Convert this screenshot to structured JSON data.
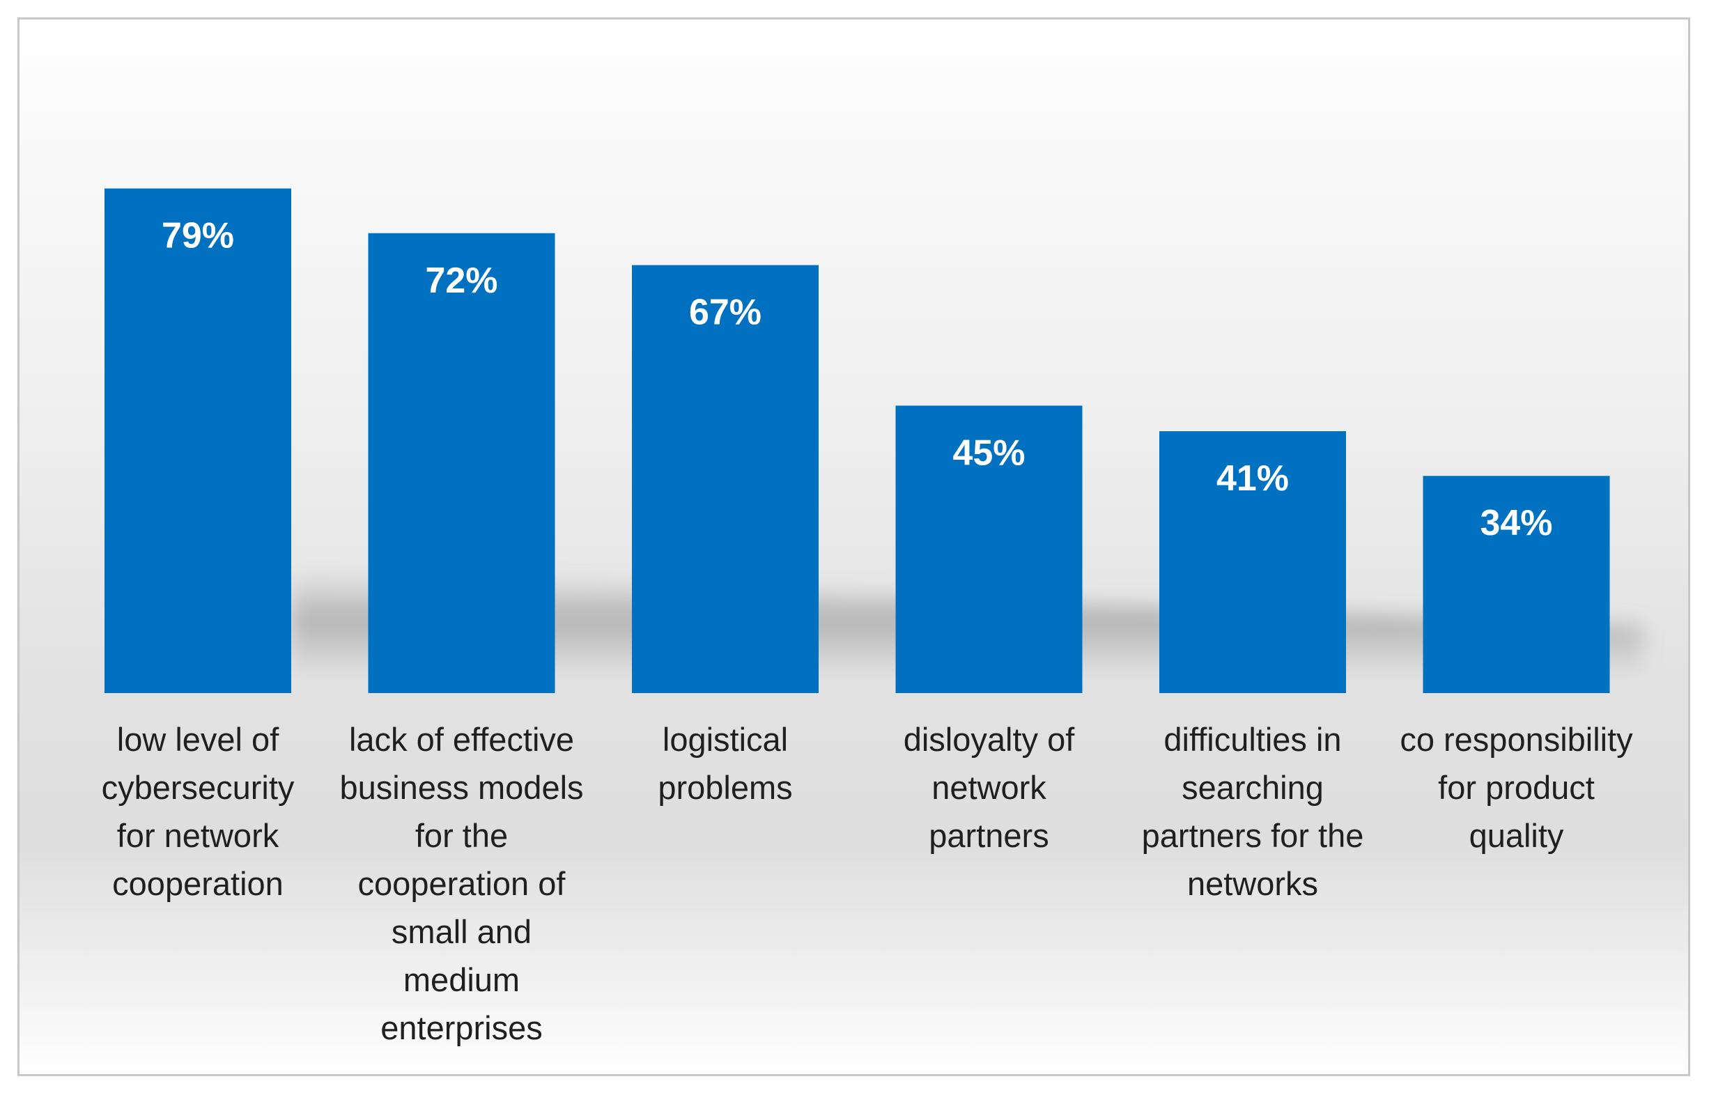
{
  "chart_data": {
    "type": "bar",
    "title": "",
    "xlabel": "",
    "ylabel": "",
    "ylim": [
      0,
      100
    ],
    "grid": false,
    "legend": "none",
    "bar_color": "#0070C0",
    "categories": [
      "low level of cybersecurity for network cooperation",
      "lack of effective business models for the cooperation of small and medium enterprises",
      "logistical problems",
      "disloyalty of network partners",
      "difficulties in searching partners for the networks",
      "co responsibility for product quality"
    ],
    "category_lines": [
      [
        "low level of",
        "cybersecurity",
        "for network",
        "cooperation"
      ],
      [
        "lack of effective",
        "business models",
        "for the",
        "cooperation of",
        "small and",
        "medium",
        "enterprises"
      ],
      [
        "logistical",
        "problems"
      ],
      [
        "disloyalty of",
        "network",
        "partners"
      ],
      [
        "difficulties in",
        "searching",
        "partners for the",
        "networks"
      ],
      [
        "co responsibility",
        "for product",
        "quality"
      ]
    ],
    "values": [
      79,
      72,
      67,
      45,
      41,
      34
    ],
    "data_labels": [
      "79%",
      "72%",
      "67%",
      "45%",
      "41%",
      "34%"
    ]
  }
}
